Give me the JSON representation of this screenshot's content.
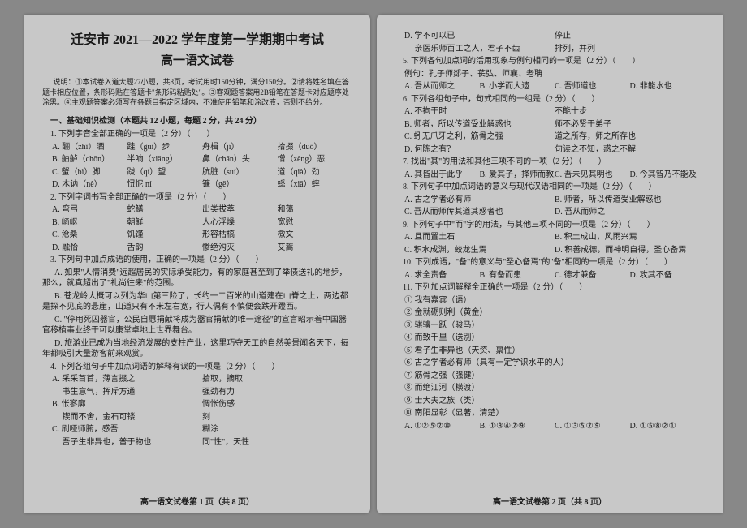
{
  "left": {
    "title": "迁安市 2021—2022 学年度第一学期期中考试",
    "subtitle": "高一语文试卷",
    "instructions": "说明：①本试卷入道大题27小题，共8页，考试用时150分钟，满分150分。②请将姓名填在答题卡相应位置，条形码贴在答题卡\"条形码粘贴处\"。③客观题答案用2B铅笔在答题卡对应题序处涂黑。④主观题答案必须写在各题目指定区域内，不准使用铅笔和涂改液，否则不给分。",
    "section1": "一、基础知识检测（本题共 12 小题，每题 2 分，共 24 分）",
    "q1": "1. 下列字音全部正确的一项是（2 分）（　　）",
    "q1r1": [
      "A. 酾（zhī）酒",
      "跬（guǐ）步",
      "舟楫（jí）",
      "拾掇（duō）"
    ],
    "q1r2": [
      "B. 舳舻（chōn）",
      "半响（xiǎng）",
      "鼻（chān）头",
      "憎（zèng）恶"
    ],
    "q1r3": [
      "C. 蟹（bì）脚",
      "跋（qí）望",
      "肮脏（suí）",
      "道（qià）劲"
    ],
    "q1r4": [
      "D. 木讷（nè）",
      "忸怩 ní",
      "镰（gě）",
      "蟋（xiā）蟀"
    ],
    "q2": "2. 下列字词书写全部正确的一项是（2 分）（　　）",
    "q2r1": [
      "A. 弯弓",
      "蛇鳝",
      "出类拔萃",
      "和蔼"
    ],
    "q2r2": [
      "B. 崎岖",
      "朝鲜",
      "人心浮燥",
      "宽慰"
    ],
    "q2r3": [
      "C. 沧桑",
      "饥馑",
      "形容枯槁",
      "檄文"
    ],
    "q2r4": [
      "D. 融恰",
      "舌韵",
      "惨绝沟灭",
      "艾蒿"
    ],
    "q3": "3. 下列句中加点成语的使用，正确的一项是（2 分）（　　）",
    "p3a": "A. 如果\"人情消费\"远超居民的实际承受能力，有的家庭甚至到了举债送礼的地步，那么，就真超出了\"礼尚往来\"的范围。",
    "p3b": "B. 苍龙岭大概可以列为华山第三险了，长约一二百米的山道建在山脊之上，两边都是探不见底的悬崖，山道只有不米左右宽，行人偶有不慎便会跌开蹬西。",
    "p3c": "C. \"停用死囚器官，公民自愿捐献将成为器官捐献的唯一途径\"的宣言昭示着中国器官移植事业终于可以康堂卓地上世界舞台。",
    "p3d": "D. 旅游业已成为当地经济发展的支柱产业，这里巧夺天工的自然美景闻名天下，每年都吸引大量游客前来观赏。",
    "q4": "4. 下列各组句子中加点词语的解释有误的一项是（2 分）（　　）",
    "q4r1a": "A. 采采首首，薄言掇之",
    "q4r1b": "拾取，摘取",
    "q4r2a": "　 书生意气，挥斥方遒",
    "q4r2b": "强劲有力",
    "q4r3a": "B. 怅寥廓",
    "q4r3b": "惆怅伤感",
    "q4r4a": "　 锲而不舍，金石可镂",
    "q4r4b": "刻",
    "q4r5a": "C. 刷哑师腑，感吾",
    "q4r5b": "糊涂",
    "q4r6a": "　 吾子生非异也，普于物也",
    "q4r6b": "同\"性\"，天性",
    "footer": "高一语文试卷第 1 页（共 8 页）"
  },
  "right": {
    "r0a": "D. 学不可以已",
    "r0b": "停止",
    "r0c": "　 亲医乐师百工之人，君子不齿",
    "r0d": "排列，并列",
    "q5": "5. 下列各句加点词的活用现象与例句相同的一项是（2 分）（　　）",
    "q5ex": "例句：孔子师郯子、苌弘、师襄、老聃",
    "q5opts": [
      "A. 吾从而师之",
      "B. 小学而大遗",
      "C. 吾师道也",
      "D. 非能水也"
    ],
    "q6": "6. 下列各组句子中，句式相同的一组是（2 分）（　　）",
    "q6r1": [
      "A. 不拘于时",
      "不能十步"
    ],
    "q6r2": [
      "B. 师者，所以传道受业解惑也",
      "师不必贤于弟子"
    ],
    "q6r3": [
      "C. 蚓无爪牙之利，筋骨之强",
      "道之所存，师之所存也"
    ],
    "q6r4": [
      "D. 何陈之有？",
      "句读之不知，惑之不解"
    ],
    "q7": "7. 找出\"其\"的用法和其他三项不同的一项（2 分）（　　）",
    "q7opts": [
      "A. 其皆出于此乎",
      "B. 爱其子，择师而教之",
      "C. 吾未见其明也",
      "D. 今其智乃不能及"
    ],
    "q8": "8. 下列句子中加点词语的意义与现代汉语相同的一项是（2 分）（　　）",
    "q8r1": "A. 古之学者必有师",
    "q8r2": "B. 师者，所以传道受业解惑也",
    "q8r3": "C. 吾从而师传其道其惑者也",
    "q8r4": "D. 吾从而师之",
    "q9": "9. 下列句子中\"而\"字的用法，与其他三项不同的一项是（2 分）（　　）",
    "q9opts": [
      "A. 且而置土石",
      "B. 积土成山，风雨兴焉",
      "C. 积水成渊，蛟龙生焉",
      "D. 积善成德，而神明自得，圣心备焉"
    ],
    "q10": "10. 下列成语，\"备\"的意义与\"圣心备焉\"的\"备\"相同的一项是（2 分）（　　）",
    "q10opts": [
      "A. 求全责备",
      "B. 有备而患",
      "C. 德才兼备",
      "D. 攻其不备"
    ],
    "q11": "11. 下列加点词解释全正确的一项是（2 分）（　　）",
    "q11r1": "① 我有嘉宾（语）",
    "q11r2": "② 金就砺则利（黄金）",
    "q11r3": "③ 骐骥一跃（骏马）",
    "q11r4": "④ 而致千里（送别）",
    "q11r5": "⑤ 君子生非异也（天资、禀性）",
    "q11r6": "⑥ 古之学者必有师（具有一定学识水平的人）",
    "q11r7": "⑦ 筋骨之强（强健）",
    "q11r8": "⑧ 而绝江河（横渡）",
    "q11r9": "⑨ 士大夫之族（类）",
    "q11r10": "⑩ 南阳显彰（显著，清楚）",
    "q11ans": [
      "A. ①②⑤⑦⑩",
      "B. ①③④⑦⑨",
      "C. ①③⑤⑦⑨",
      "D. ①⑤⑧②①"
    ],
    "footer": "高一语文试卷第 2 页（共 8 页）"
  }
}
